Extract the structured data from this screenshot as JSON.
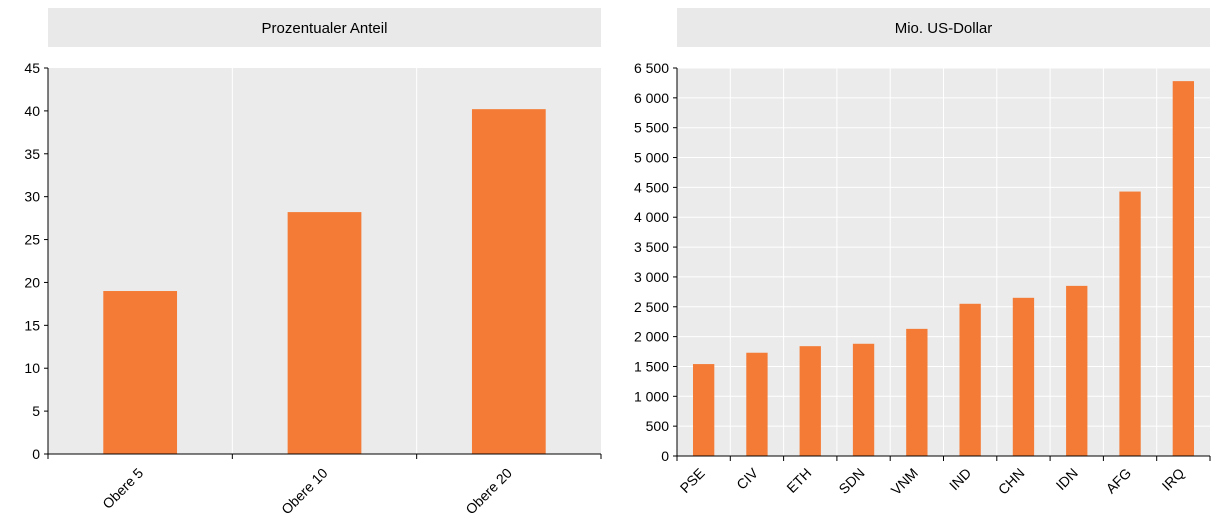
{
  "colors": {
    "bar": "#f47b35",
    "plot_background": "#ebebeb",
    "header_background": "#e9e9e9",
    "grid": "#ffffff",
    "axis": "#000000"
  },
  "chart_data": [
    {
      "type": "bar",
      "header": "Prozentualer Anteil",
      "categories": [
        "Obere 5",
        "Obere 10",
        "Obere 20"
      ],
      "values": [
        19,
        28.2,
        40.2
      ],
      "ylim": [
        0,
        45
      ],
      "yticks": [
        {
          "value": 0,
          "label": "0"
        },
        {
          "value": 5,
          "label": "5"
        },
        {
          "value": 10,
          "label": "10"
        },
        {
          "value": 15,
          "label": "15"
        },
        {
          "value": 20,
          "label": "20"
        },
        {
          "value": 25,
          "label": "25"
        },
        {
          "value": 30,
          "label": "30"
        },
        {
          "value": 35,
          "label": "35"
        },
        {
          "value": 40,
          "label": "40"
        },
        {
          "value": 45,
          "label": "45"
        }
      ],
      "grid": "vertical",
      "xlabel": "",
      "ylabel": ""
    },
    {
      "type": "bar",
      "header": "Mio. US-Dollar",
      "categories": [
        "PSE",
        "CIV",
        "ETH",
        "SDN",
        "VNM",
        "IND",
        "CHN",
        "IDN",
        "AFG",
        "IRQ"
      ],
      "values": [
        1540,
        1730,
        1840,
        1880,
        2130,
        2550,
        2650,
        2850,
        4430,
        6280
      ],
      "ylim": [
        0,
        6500
      ],
      "yticks": [
        {
          "value": 0,
          "label": "0"
        },
        {
          "value": 500,
          "label": "500"
        },
        {
          "value": 1000,
          "label": "1 000"
        },
        {
          "value": 1500,
          "label": "1 500"
        },
        {
          "value": 2000,
          "label": "2 000"
        },
        {
          "value": 2500,
          "label": "2 500"
        },
        {
          "value": 3000,
          "label": "3 000"
        },
        {
          "value": 3500,
          "label": "3 500"
        },
        {
          "value": 4000,
          "label": "4 000"
        },
        {
          "value": 4500,
          "label": "4 500"
        },
        {
          "value": 5000,
          "label": "5 000"
        },
        {
          "value": 5500,
          "label": "5 500"
        },
        {
          "value": 6000,
          "label": "6 000"
        },
        {
          "value": 6500,
          "label": "6 500"
        }
      ],
      "grid": "both",
      "xlabel": "",
      "ylabel": ""
    }
  ]
}
